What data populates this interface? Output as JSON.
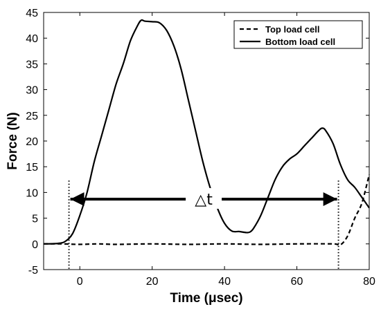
{
  "chart_data": {
    "type": "line",
    "title": "",
    "xlabel": "Time (μsec)",
    "ylabel": "Force (N)",
    "xlim": [
      -10,
      80
    ],
    "ylim": [
      -5,
      45
    ],
    "xticks": [
      0,
      20,
      40,
      60,
      80
    ],
    "yticks": [
      -5,
      0,
      5,
      10,
      15,
      20,
      25,
      30,
      35,
      40,
      45
    ],
    "grid": false,
    "legend_position": "top-right",
    "series": [
      {
        "name": "Top load cell",
        "style": "dashed",
        "color": "#000000",
        "x": [
          -10,
          -5,
          0,
          5,
          10,
          20,
          30,
          40,
          50,
          60,
          70,
          72,
          74,
          76,
          78,
          80
        ],
        "y": [
          0,
          0,
          -0.1,
          0,
          -0.1,
          0,
          -0.1,
          0,
          -0.1,
          0,
          0,
          -0.2,
          1.5,
          5,
          8,
          13.5
        ]
      },
      {
        "name": "Bottom load cell",
        "style": "solid",
        "color": "#000000",
        "x": [
          -10,
          -6,
          -4,
          -2,
          0,
          2,
          4,
          6,
          8,
          10,
          12,
          14,
          16,
          17,
          18,
          20,
          22,
          24,
          26,
          28,
          30,
          32,
          34,
          36,
          38,
          40,
          42,
          44,
          46,
          47,
          48,
          50,
          52,
          54,
          56,
          58,
          60,
          62,
          64,
          66,
          67,
          68,
          70,
          72,
          74,
          76,
          78,
          80
        ],
        "y": [
          0,
          0.1,
          0.5,
          2,
          5.5,
          10,
          16,
          21,
          26,
          31,
          35,
          39.5,
          42.5,
          43.5,
          43.3,
          43.2,
          43,
          41.5,
          38.5,
          34,
          28,
          22,
          16,
          11,
          7,
          4,
          2.5,
          2.4,
          2.2,
          2.3,
          3,
          5.5,
          9,
          12.5,
          15,
          16.5,
          17.5,
          19,
          20.5,
          22,
          22.5,
          22,
          19.5,
          15.5,
          12.5,
          11,
          9,
          7
        ]
      }
    ],
    "annotations": [
      {
        "text": "△t",
        "type": "double-arrow",
        "x_start": -3,
        "x_end": 71.5,
        "y": 8.7
      },
      {
        "type": "vline",
        "style": "dotted",
        "x": -3
      },
      {
        "type": "vline",
        "style": "dotted",
        "x": 71.5
      }
    ]
  }
}
